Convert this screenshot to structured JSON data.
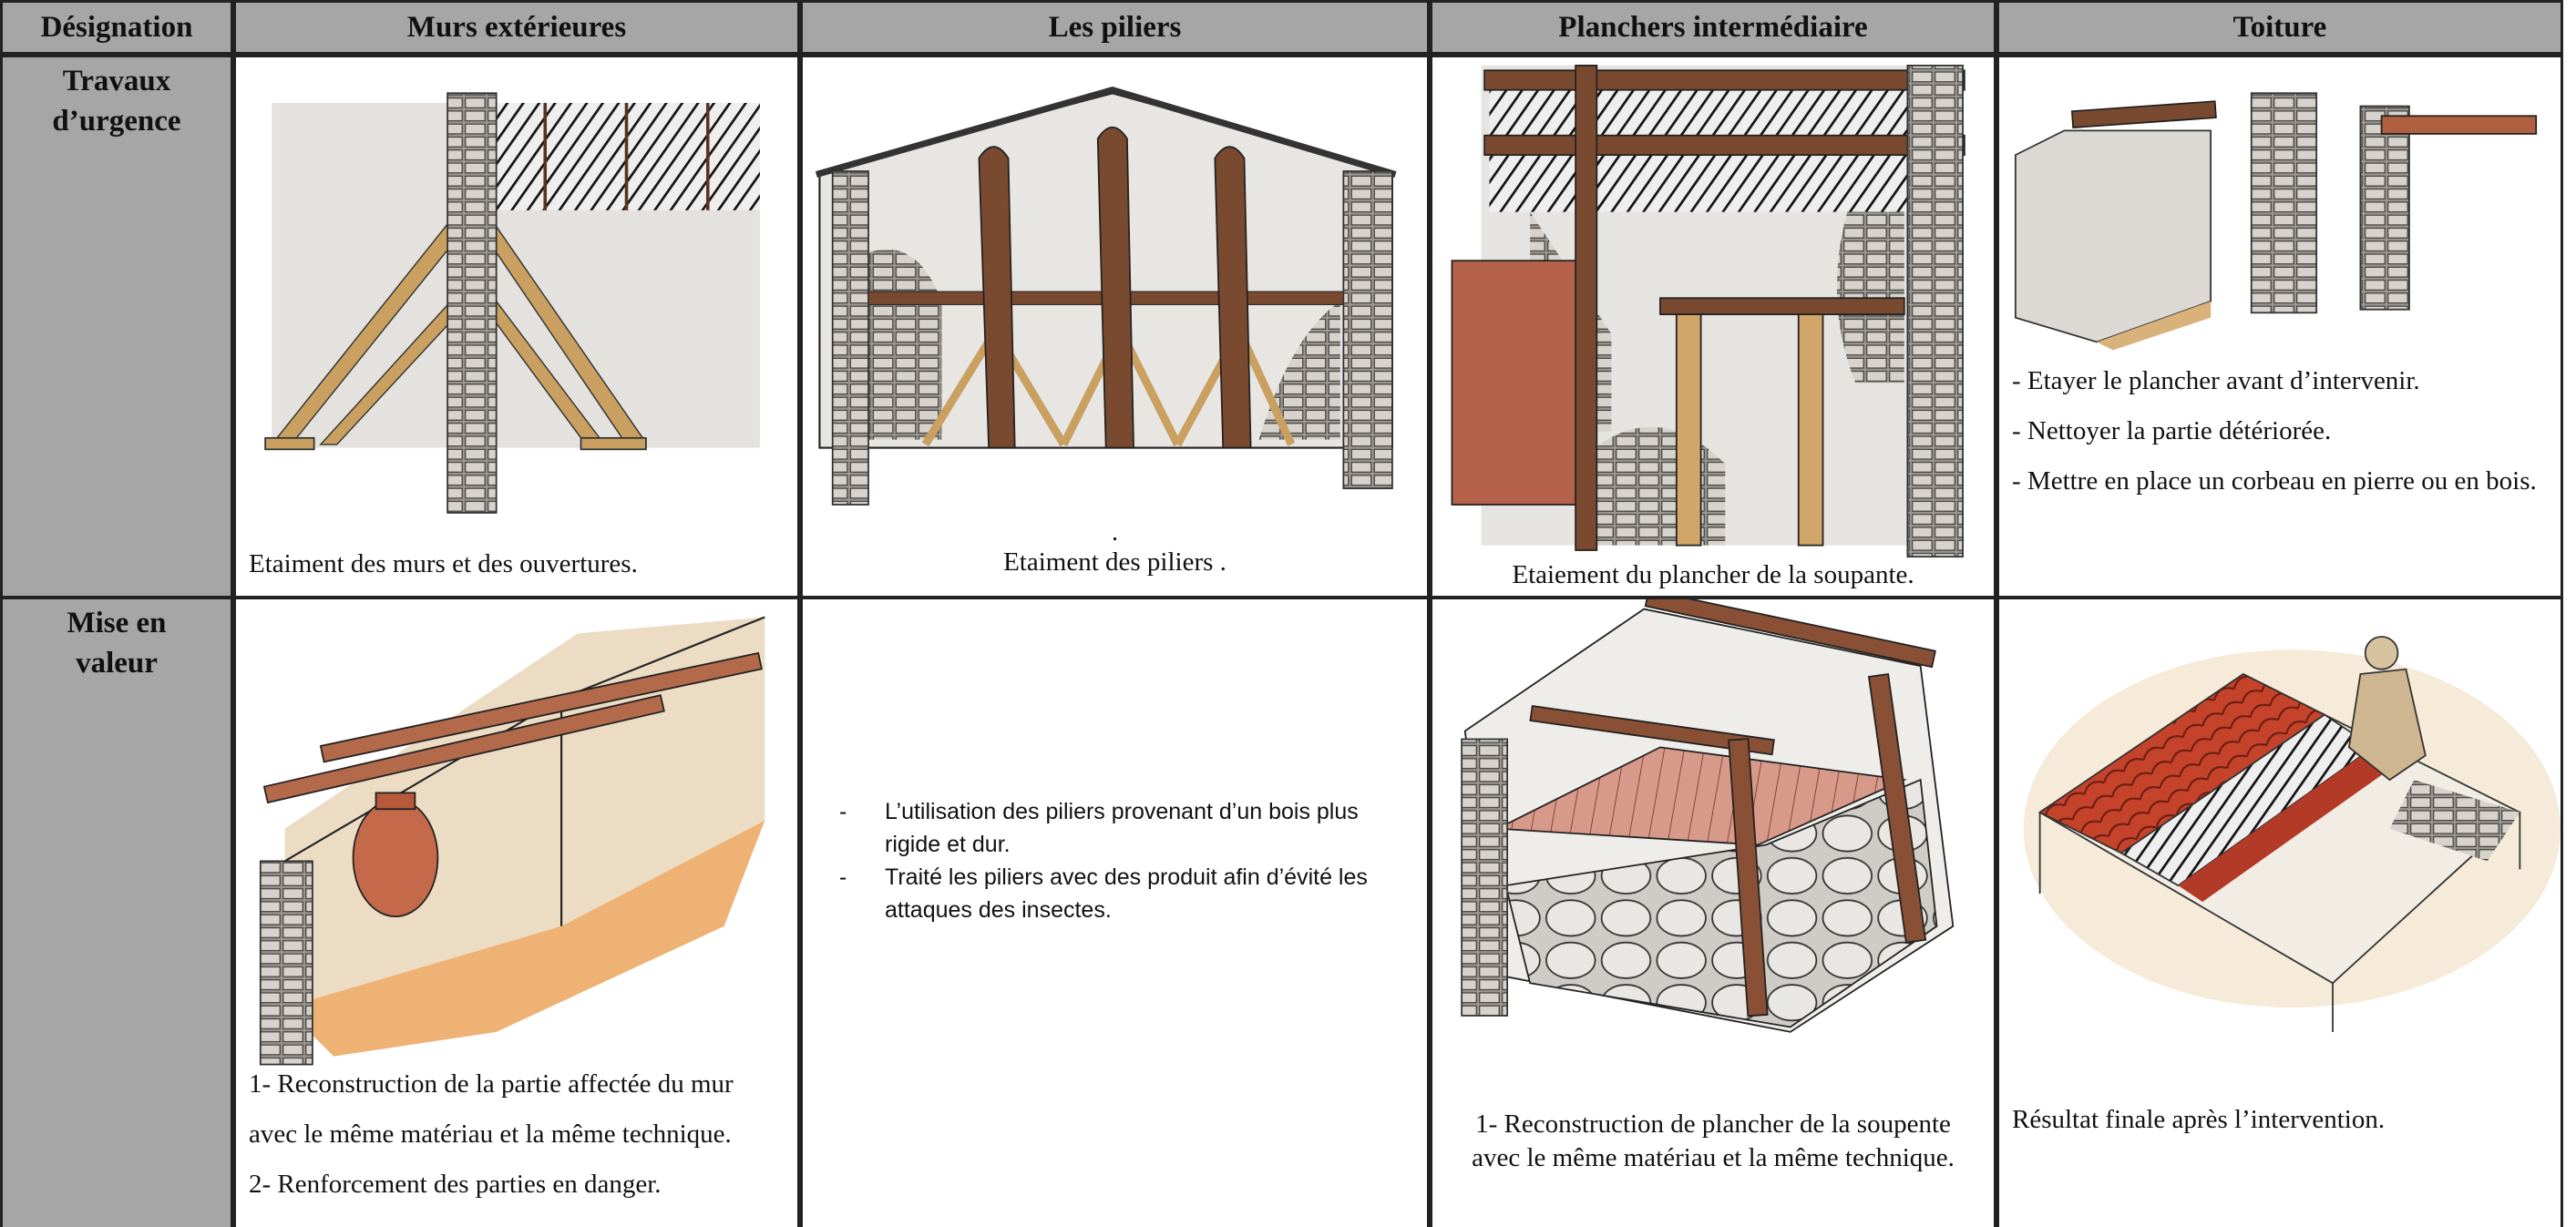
{
  "table": {
    "header": [
      "Désignation",
      "Murs extérieures",
      "Les piliers",
      "Planchers intermédiaire",
      "Toiture"
    ],
    "rows": [
      {
        "label": [
          "Travaux",
          "d’urgence"
        ],
        "cells": [
          {
            "caption": "Etaiment des murs et des ouvertures."
          },
          {
            "mark": ".",
            "caption": "Etaiment des piliers ."
          },
          {
            "caption": "Etaiement du plancher de la soupante."
          },
          {
            "paragraphs": [
              "- Etayer le plancher avant d’intervenir.",
              "- Nettoyer la partie détériorée.",
              "- Mettre en place un corbeau en pierre ou en bois."
            ]
          }
        ]
      },
      {
        "label": [
          "Mise en",
          "valeur"
        ],
        "cells": [
          {
            "lines": [
              "1- Reconstruction de la partie affectée du mur",
              "avec le même matériau et la même technique.",
              "2- Renforcement des parties en danger."
            ]
          },
          {
            "bullet": "-",
            "items": [
              "L’utilisation des piliers provenant d’un bois plus rigide et dur.",
              "Traité les piliers avec des produit afin d’évité les attaques des insectes."
            ]
          },
          {
            "lines": [
              "1- Reconstruction de plancher de la soupente",
              "avec le même matériau et la même technique."
            ]
          },
          {
            "caption": "Résultat finale après l’intervention."
          }
        ]
      }
    ]
  }
}
